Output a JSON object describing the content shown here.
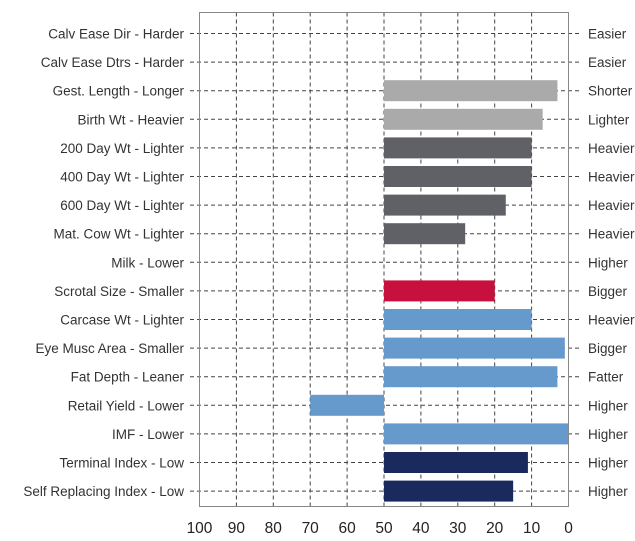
{
  "chart_data": {
    "type": "bar",
    "orientation": "horizontal",
    "title": "",
    "xlabel": "",
    "ylabel": "",
    "xlim": [
      100,
      0
    ],
    "x_ticks": [
      "100",
      "90",
      "80",
      "70",
      "60",
      "50",
      "40",
      "30",
      "20",
      "10",
      "0"
    ],
    "grid": true,
    "bar_origin": 50,
    "rows": [
      {
        "left": "Calv Ease Dir - Harder",
        "right": "Easier",
        "value": null,
        "color": null
      },
      {
        "left": "Calv Ease Dtrs - Harder",
        "right": "Easier",
        "value": null,
        "color": null
      },
      {
        "left": "Gest. Length - Longer",
        "right": "Shorter",
        "value": 3,
        "color": "#aaaaaa"
      },
      {
        "left": "Birth Wt - Heavier",
        "right": "Lighter",
        "value": 7,
        "color": "#aaaaaa"
      },
      {
        "left": "200 Day Wt - Lighter",
        "right": "Heavier",
        "value": 10,
        "color": "#606167"
      },
      {
        "left": "400 Day Wt - Lighter",
        "right": "Heavier",
        "value": 10,
        "color": "#606167"
      },
      {
        "left": "600 Day Wt - Lighter",
        "right": "Heavier",
        "value": 17,
        "color": "#606167"
      },
      {
        "left": "Mat. Cow Wt - Lighter",
        "right": "Heavier",
        "value": 28,
        "color": "#606167"
      },
      {
        "left": "Milk - Lower",
        "right": "Higher",
        "value": null,
        "color": null
      },
      {
        "left": "Scrotal Size - Smaller",
        "right": "Bigger",
        "value": 20,
        "color": "#c8103e"
      },
      {
        "left": "Carcase Wt - Lighter",
        "right": "Heavier",
        "value": 10,
        "color": "#6699cc"
      },
      {
        "left": "Eye Musc Area - Smaller",
        "right": "Bigger",
        "value": 1,
        "color": "#6699cc"
      },
      {
        "left": "Fat Depth - Leaner",
        "right": "Fatter",
        "value": 3,
        "color": "#6699cc"
      },
      {
        "left": "Retail Yield - Lower",
        "right": "Higher",
        "value": 70,
        "color": "#6699cc"
      },
      {
        "left": "IMF - Lower",
        "right": "Higher",
        "value": 0,
        "color": "#6699cc"
      },
      {
        "left": "Terminal Index - Low",
        "right": "Higher",
        "value": 11,
        "color": "#1b2a5c"
      },
      {
        "left": "Self Replacing Index - Low",
        "right": "Higher",
        "value": 15,
        "color": "#1b2a5c"
      }
    ]
  }
}
